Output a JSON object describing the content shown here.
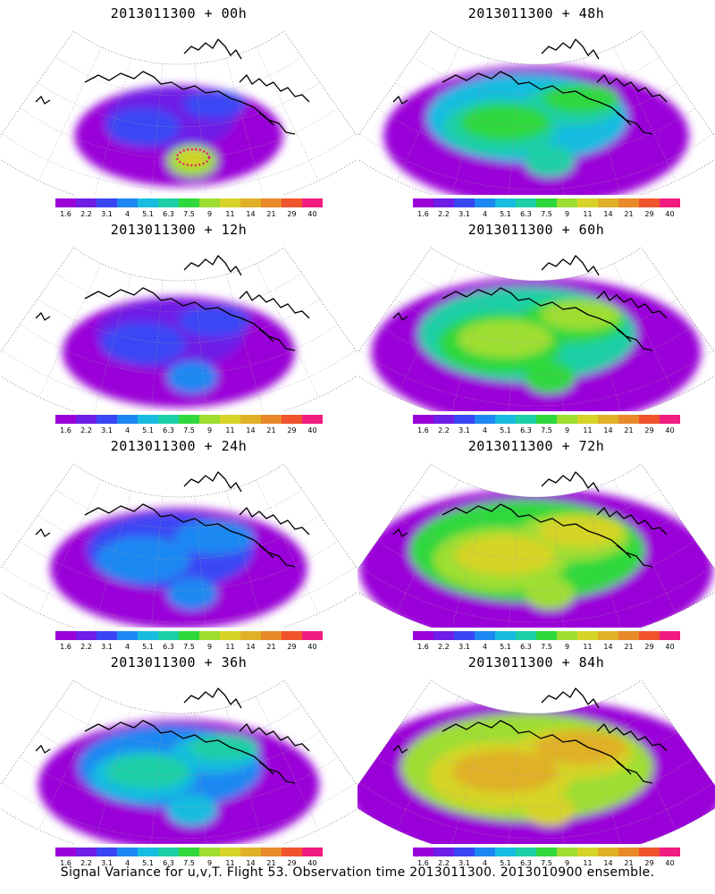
{
  "caption": "Signal Variance for u,v,T. Flight 53. Observation time 2013011300. 2013010900 ensemble.",
  "colorbar": {
    "labels": [
      "1.6",
      "2.2",
      "3.1",
      "4",
      "5.1",
      "6.3",
      "7.5",
      "9",
      "11",
      "14",
      "21",
      "29",
      "40"
    ],
    "colors": [
      "#9a00d8",
      "#6e1ee6",
      "#3a46f4",
      "#1e88f2",
      "#18bce0",
      "#1ccfa6",
      "#2fd83c",
      "#9ede30",
      "#d6d428",
      "#e0b028",
      "#e8892a",
      "#f0542c",
      "#f01c80"
    ]
  },
  "panels": [
    {
      "id": "p00",
      "title": "2013011300 + 00h",
      "lead": "00h",
      "intensity": 0
    },
    {
      "id": "p48",
      "title": "2013011300 + 48h",
      "lead": "48h",
      "intensity": 4
    },
    {
      "id": "p12",
      "title": "2013011300 + 12h",
      "lead": "12h",
      "intensity": 1
    },
    {
      "id": "p60",
      "title": "2013011300 + 60h",
      "lead": "60h",
      "intensity": 5
    },
    {
      "id": "p24",
      "title": "2013011300 + 24h",
      "lead": "24h",
      "intensity": 2
    },
    {
      "id": "p72",
      "title": "2013011300 + 72h",
      "lead": "72h",
      "intensity": 6
    },
    {
      "id": "p36",
      "title": "2013011300 + 36h",
      "lead": "36h",
      "intensity": 3
    },
    {
      "id": "p84",
      "title": "2013011300 + 84h",
      "lead": "84h",
      "intensity": 7
    }
  ],
  "observation_track": {
    "panel": "p00",
    "color": "#e8206a"
  }
}
